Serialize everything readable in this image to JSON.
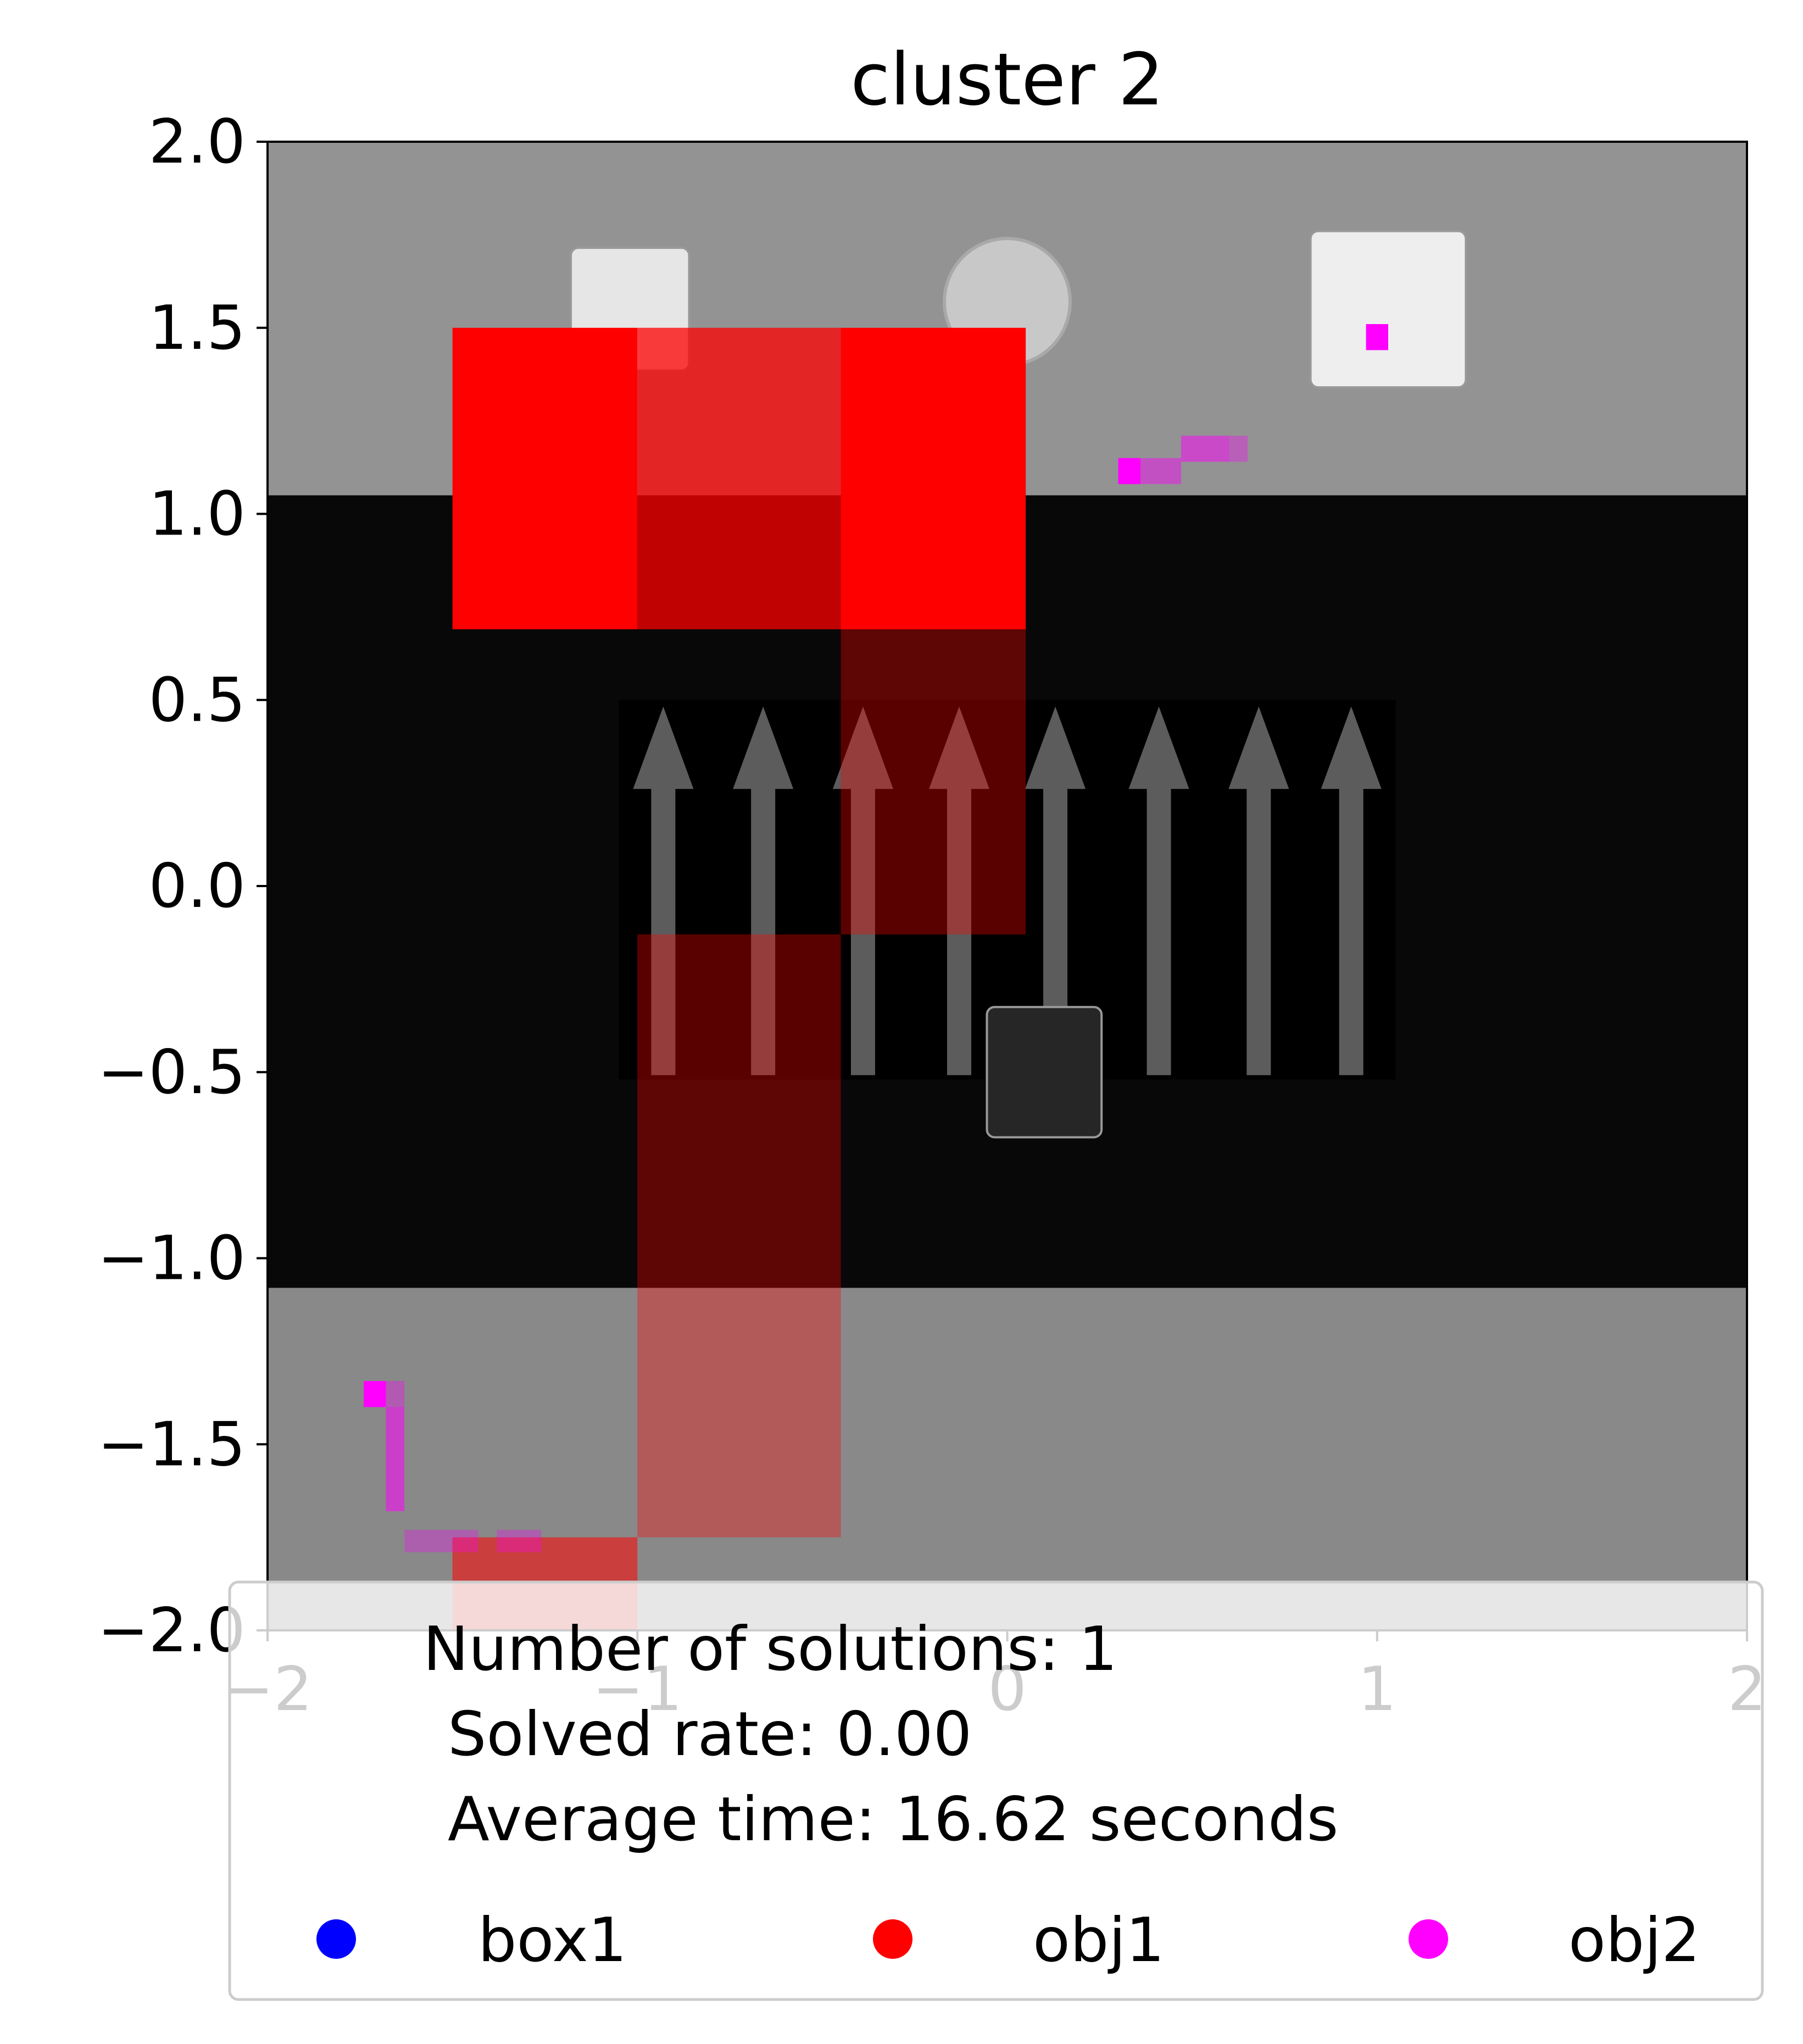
{
  "chart_data": {
    "type": "heatmap",
    "title": "cluster 2",
    "xlabel": "",
    "ylabel": "",
    "xlim": [
      -2,
      2
    ],
    "ylim": [
      -2,
      2
    ],
    "x_ticks": [
      {
        "value": -2,
        "label": "−2"
      },
      {
        "value": -1,
        "label": "−1"
      },
      {
        "value": 0,
        "label": "0"
      },
      {
        "value": 1,
        "label": "1"
      },
      {
        "value": 2,
        "label": "2"
      }
    ],
    "y_ticks": [
      {
        "value": 2.0,
        "label": "2.0"
      },
      {
        "value": 1.5,
        "label": "1.5"
      },
      {
        "value": 1.0,
        "label": "1.0"
      },
      {
        "value": 0.5,
        "label": "0.5"
      },
      {
        "value": 0.0,
        "label": "0.0"
      },
      {
        "value": -0.5,
        "label": "−0.5"
      },
      {
        "value": -1.0,
        "label": "−1.0"
      },
      {
        "value": -1.5,
        "label": "−1.5"
      },
      {
        "value": -2.0,
        "label": "−2.0"
      }
    ],
    "grid": false,
    "legend": {
      "placement": "bottom-center",
      "stats": [
        "Number of solutions: 1",
        "Solved rate: 0.00",
        "Average time: 16.62 seconds"
      ],
      "entries": [
        {
          "name": "box1",
          "color": "#0000ff"
        },
        {
          "name": "obj1",
          "color": "#ff0000"
        },
        {
          "name": "obj2",
          "color": "#ff00ff"
        }
      ]
    },
    "background_scene": {
      "regions": [
        {
          "name": "top-floor",
          "y": [
            1.05,
            2.0
          ],
          "color": "#939393"
        },
        {
          "name": "conveyor-belt",
          "y": [
            -1.08,
            1.05
          ],
          "color": "#080808"
        },
        {
          "name": "bottom-floor",
          "y": [
            -2.0,
            -1.08
          ],
          "color": "#898989"
        }
      ],
      "arrow_panel": {
        "x": [
          -1.05,
          1.05
        ],
        "y": [
          -0.52,
          0.5
        ],
        "arrow_x": [
          -0.93,
          -0.66,
          -0.39,
          -0.13,
          0.13,
          0.41,
          0.68,
          0.93
        ],
        "direction": "up"
      },
      "objects": [
        {
          "name": "cube-left",
          "cx": -1.02,
          "cy": 1.55,
          "w": 0.32,
          "h": 0.33,
          "color": "#e6e6e6"
        },
        {
          "name": "cylinder",
          "cx": 0.0,
          "cy": 1.57,
          "r": 0.17,
          "color": "#c8c8c8"
        },
        {
          "name": "cube-right",
          "cx": 1.03,
          "cy": 1.55,
          "w": 0.42,
          "h": 0.42,
          "color": "#eeeeee"
        },
        {
          "name": "dark-box",
          "cx": 0.1,
          "cy": -0.5,
          "w": 0.31,
          "h": 0.35,
          "color": "#262626"
        }
      ]
    },
    "series": [
      {
        "name": "obj1",
        "color": "#ff0000",
        "cells": [
          {
            "x0": -1.5,
            "x1": -1.0,
            "y0": 0.69,
            "y1": 1.5,
            "alpha": 1.0
          },
          {
            "x0": -1.0,
            "x1": -0.45,
            "y0": 0.69,
            "y1": 1.5,
            "alpha": 0.75
          },
          {
            "x0": -0.45,
            "x1": 0.05,
            "y0": 0.69,
            "y1": 1.5,
            "alpha": 1.0
          },
          {
            "x0": -0.45,
            "x1": 0.05,
            "y0": -0.13,
            "y1": 0.69,
            "alpha": 0.35
          },
          {
            "x0": -1.0,
            "x1": -0.45,
            "y0": -1.75,
            "y1": -0.13,
            "alpha": 0.35
          },
          {
            "x0": -1.5,
            "x1": -1.0,
            "y0": -2.0,
            "y1": -1.75,
            "alpha": 0.55
          }
        ]
      },
      {
        "name": "obj2",
        "color": "#ff00ff",
        "cells": [
          {
            "x0": 0.97,
            "x1": 1.03,
            "y0": 1.44,
            "y1": 1.51,
            "alpha": 1.0
          },
          {
            "x0": 0.3,
            "x1": 0.36,
            "y0": 1.08,
            "y1": 1.15,
            "alpha": 1.0
          },
          {
            "x0": 0.36,
            "x1": 0.47,
            "y0": 1.08,
            "y1": 1.15,
            "alpha": 0.45
          },
          {
            "x0": 0.47,
            "x1": 0.6,
            "y0": 1.14,
            "y1": 1.21,
            "alpha": 0.5
          },
          {
            "x0": 0.6,
            "x1": 0.65,
            "y0": 1.14,
            "y1": 1.21,
            "alpha": 0.35
          },
          {
            "x0": -1.74,
            "x1": -1.68,
            "y0": -1.4,
            "y1": -1.33,
            "alpha": 1.0
          },
          {
            "x0": -1.68,
            "x1": -1.63,
            "y0": -1.4,
            "y1": -1.33,
            "alpha": 0.35
          },
          {
            "x0": -1.68,
            "x1": -1.63,
            "y0": -1.68,
            "y1": -1.4,
            "alpha": 0.55
          },
          {
            "x0": -1.63,
            "x1": -1.43,
            "y0": -1.79,
            "y1": -1.73,
            "alpha": 0.3
          },
          {
            "x0": -1.38,
            "x1": -1.26,
            "y0": -1.79,
            "y1": -1.73,
            "alpha": 0.3
          }
        ]
      },
      {
        "name": "box1",
        "color": "#0000ff",
        "cells": []
      }
    ]
  }
}
